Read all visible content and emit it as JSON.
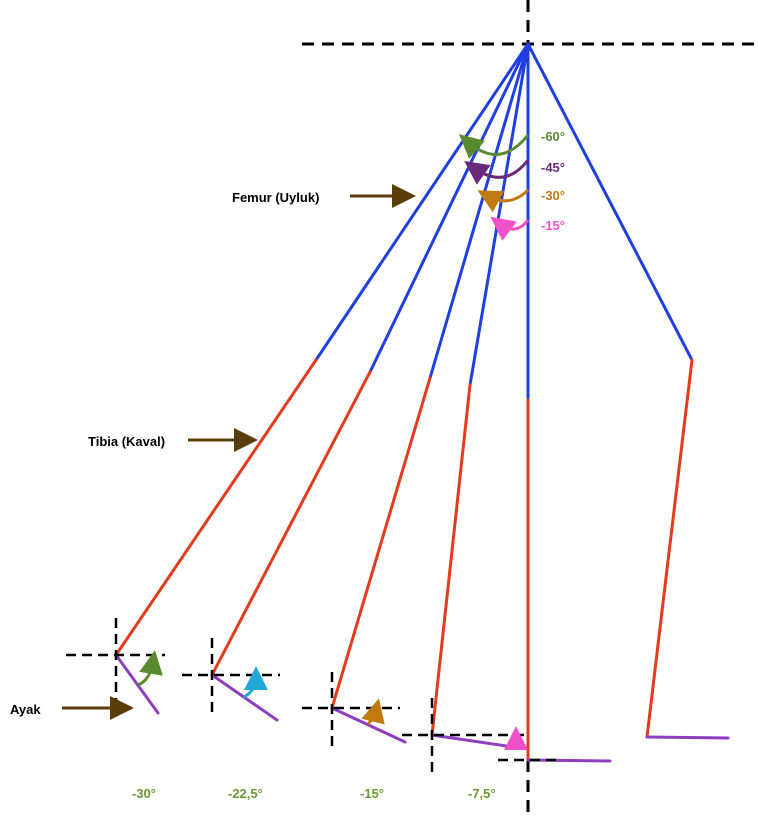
{
  "labels": {
    "femur": "Femur (Uyluk)",
    "tibia": "Tibia (Kaval)",
    "foot": "Ayak"
  },
  "hip_angles": [
    {
      "text": "-60°",
      "color": "#5a8a30"
    },
    {
      "text": "-45°",
      "color": "#6a2a7a"
    },
    {
      "text": "-30°",
      "color": "#c07a10"
    },
    {
      "text": "-15°",
      "color": "#f050c8"
    }
  ],
  "ankle_angles": [
    "-30°",
    "-22,5°",
    "-15°",
    "-7,5°"
  ],
  "colors": {
    "femur": "#1f3fe0",
    "tibia": "#e23b1e",
    "foot": "#8e3fc0",
    "label_arrow": "#5b3d0a",
    "ankle_text": "#6a9a3a",
    "ankle_arrows": [
      "#5a8a30",
      "#22a8d8",
      "#c07a10",
      "#f050c8"
    ]
  }
}
